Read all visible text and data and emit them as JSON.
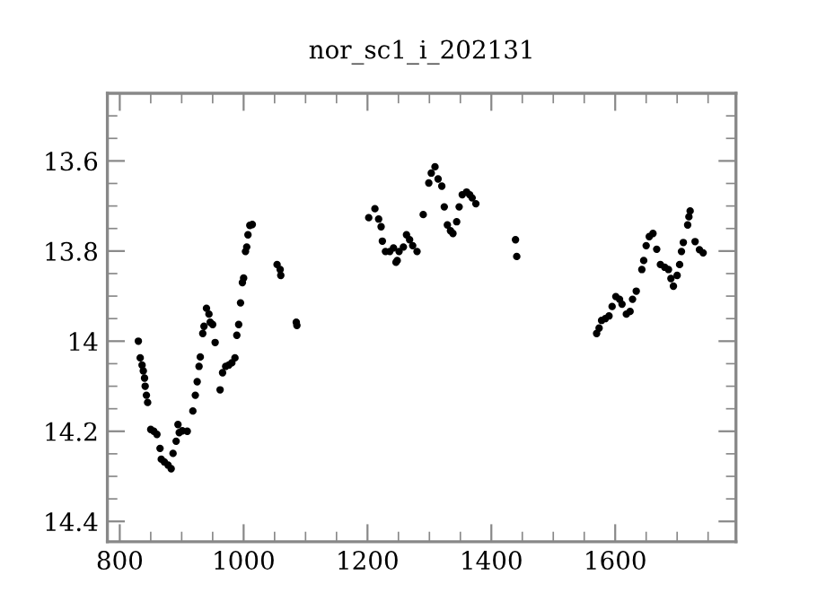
{
  "chart_data": {
    "type": "scatter",
    "title": "nor_sc1_i_202131",
    "marker": "circle",
    "grid": false,
    "xlim": [
      780,
      1795
    ],
    "ylim": [
      14.445,
      13.45
    ],
    "xticks": [
      800,
      1000,
      1200,
      1400,
      1600
    ],
    "yticks": [
      13.6,
      13.8,
      14,
      14.2,
      14.4
    ],
    "series": [
      {
        "color": "#000000",
        "x": [
          830,
          833,
          836,
          838,
          840,
          841,
          843,
          845,
          850,
          855,
          860,
          865,
          867,
          872,
          878,
          883,
          886,
          891,
          894,
          896,
          901,
          909,
          918,
          922,
          925,
          928,
          930,
          934,
          936,
          940,
          944,
          946,
          950,
          954,
          962,
          966,
          971,
          976,
          981,
          986,
          989,
          992,
          995,
          998,
          1000,
          1003,
          1005,
          1007,
          1010,
          1014,
          1054,
          1059,
          1060,
          1085,
          1086,
          1202,
          1212,
          1218,
          1222,
          1224,
          1229,
          1236,
          1242,
          1246,
          1248,
          1251,
          1258,
          1263,
          1268,
          1273,
          1280,
          1290,
          1299,
          1303,
          1309,
          1314,
          1320,
          1324,
          1329,
          1334,
          1338,
          1344,
          1348,
          1353,
          1360,
          1365,
          1369,
          1375,
          1439,
          1441,
          1570,
          1574,
          1578,
          1584,
          1590,
          1595,
          1601,
          1607,
          1611,
          1618,
          1624,
          1628,
          1634,
          1643,
          1646,
          1650,
          1655,
          1661,
          1667,
          1673,
          1680,
          1686,
          1690,
          1694,
          1700,
          1704,
          1707,
          1710,
          1717,
          1719,
          1721,
          1729,
          1736,
          1742
        ],
        "values": [
          14.0,
          14.037,
          14.053,
          14.066,
          14.082,
          14.1,
          14.12,
          14.136,
          14.196,
          14.2,
          14.207,
          14.238,
          14.262,
          14.268,
          14.275,
          14.283,
          14.249,
          14.222,
          14.185,
          14.203,
          14.199,
          14.2,
          14.155,
          14.12,
          14.09,
          14.056,
          14.035,
          13.983,
          13.967,
          13.927,
          13.94,
          13.958,
          13.963,
          14.003,
          14.108,
          14.07,
          14.056,
          14.053,
          14.048,
          14.037,
          13.987,
          13.963,
          13.915,
          13.87,
          13.86,
          13.801,
          13.791,
          13.764,
          13.743,
          13.741,
          13.83,
          13.841,
          13.854,
          13.958,
          13.965,
          13.726,
          13.706,
          13.729,
          13.746,
          13.778,
          13.801,
          13.801,
          13.793,
          13.825,
          13.821,
          13.801,
          13.791,
          13.764,
          13.775,
          13.788,
          13.801,
          13.719,
          13.649,
          13.627,
          13.613,
          13.64,
          13.656,
          13.702,
          13.742,
          13.755,
          13.761,
          13.735,
          13.702,
          13.675,
          13.669,
          13.675,
          13.682,
          13.695,
          13.775,
          13.812,
          13.983,
          13.971,
          13.954,
          13.95,
          13.944,
          13.923,
          13.901,
          13.907,
          13.918,
          13.94,
          13.934,
          13.907,
          13.889,
          13.841,
          13.821,
          13.788,
          13.768,
          13.761,
          13.796,
          13.83,
          13.836,
          13.841,
          13.861,
          13.878,
          13.854,
          13.83,
          13.801,
          13.781,
          13.742,
          13.724,
          13.711,
          13.779,
          13.797,
          13.804
        ]
      }
    ]
  }
}
